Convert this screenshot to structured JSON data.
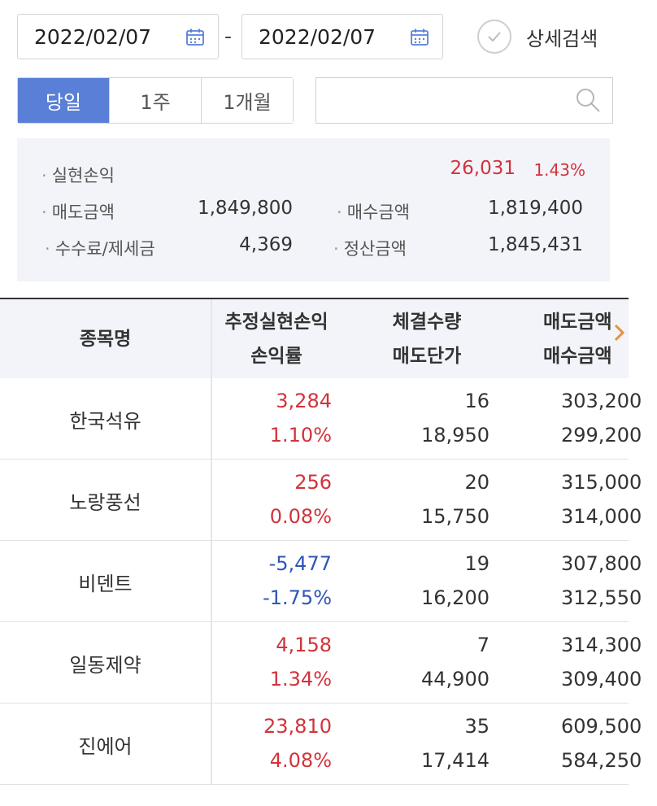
{
  "date_range": {
    "start": "2022/02/07",
    "separator": "-",
    "end": "2022/02/07"
  },
  "detail_search": {
    "label": "상세검색"
  },
  "period_tabs": [
    {
      "label": "당일",
      "active": true
    },
    {
      "label": "1주",
      "active": false
    },
    {
      "label": "1개월",
      "active": false
    }
  ],
  "search": {
    "value": "",
    "placeholder": ""
  },
  "summary": {
    "realized_pl": {
      "label": "실현손익",
      "value": "26,031",
      "rate": "1.43%"
    },
    "sell_amount": {
      "label": "매도금액",
      "value": "1,849,800"
    },
    "buy_amount": {
      "label": "매수금액",
      "value": "1,819,400"
    },
    "fee_tax": {
      "label": "수수료/제세금",
      "value": "4,369"
    },
    "settlement": {
      "label": "정산금액",
      "value": "1,845,431"
    }
  },
  "table": {
    "headers": {
      "name": "종목명",
      "pl_top": "추정실현손익",
      "pl_bottom": "손익률",
      "qty_top": "체결수량",
      "qty_bottom": "매도단가",
      "amt_top": "매도금액",
      "amt_bottom": "매수금액"
    },
    "rows": [
      {
        "name": "한국석유",
        "pl": "3,284",
        "rate": "1.10%",
        "qty": "16",
        "price": "18,950",
        "sell": "303,200",
        "buy": "299,200",
        "sign": "pos"
      },
      {
        "name": "노랑풍선",
        "pl": "256",
        "rate": "0.08%",
        "qty": "20",
        "price": "15,750",
        "sell": "315,000",
        "buy": "314,000",
        "sign": "pos"
      },
      {
        "name": "비덴트",
        "pl": "-5,477",
        "rate": "-1.75%",
        "qty": "19",
        "price": "16,200",
        "sell": "307,800",
        "buy": "312,550",
        "sign": "neg"
      },
      {
        "name": "일동제약",
        "pl": "4,158",
        "rate": "1.34%",
        "qty": "7",
        "price": "44,900",
        "sell": "314,300",
        "buy": "309,400",
        "sign": "pos"
      },
      {
        "name": "진에어",
        "pl": "23,810",
        "rate": "4.08%",
        "qty": "35",
        "price": "17,414",
        "sell": "609,500",
        "buy": "584,250",
        "sign": "pos"
      }
    ]
  },
  "colors": {
    "accent": "#5a7fd6",
    "positive": "#d2333a",
    "negative": "#2f55b8",
    "scroll_arrow": "#e8913a"
  },
  "icons": [
    "calendar-icon",
    "check-circle-icon",
    "search-icon",
    "chevron-right-icon"
  ]
}
